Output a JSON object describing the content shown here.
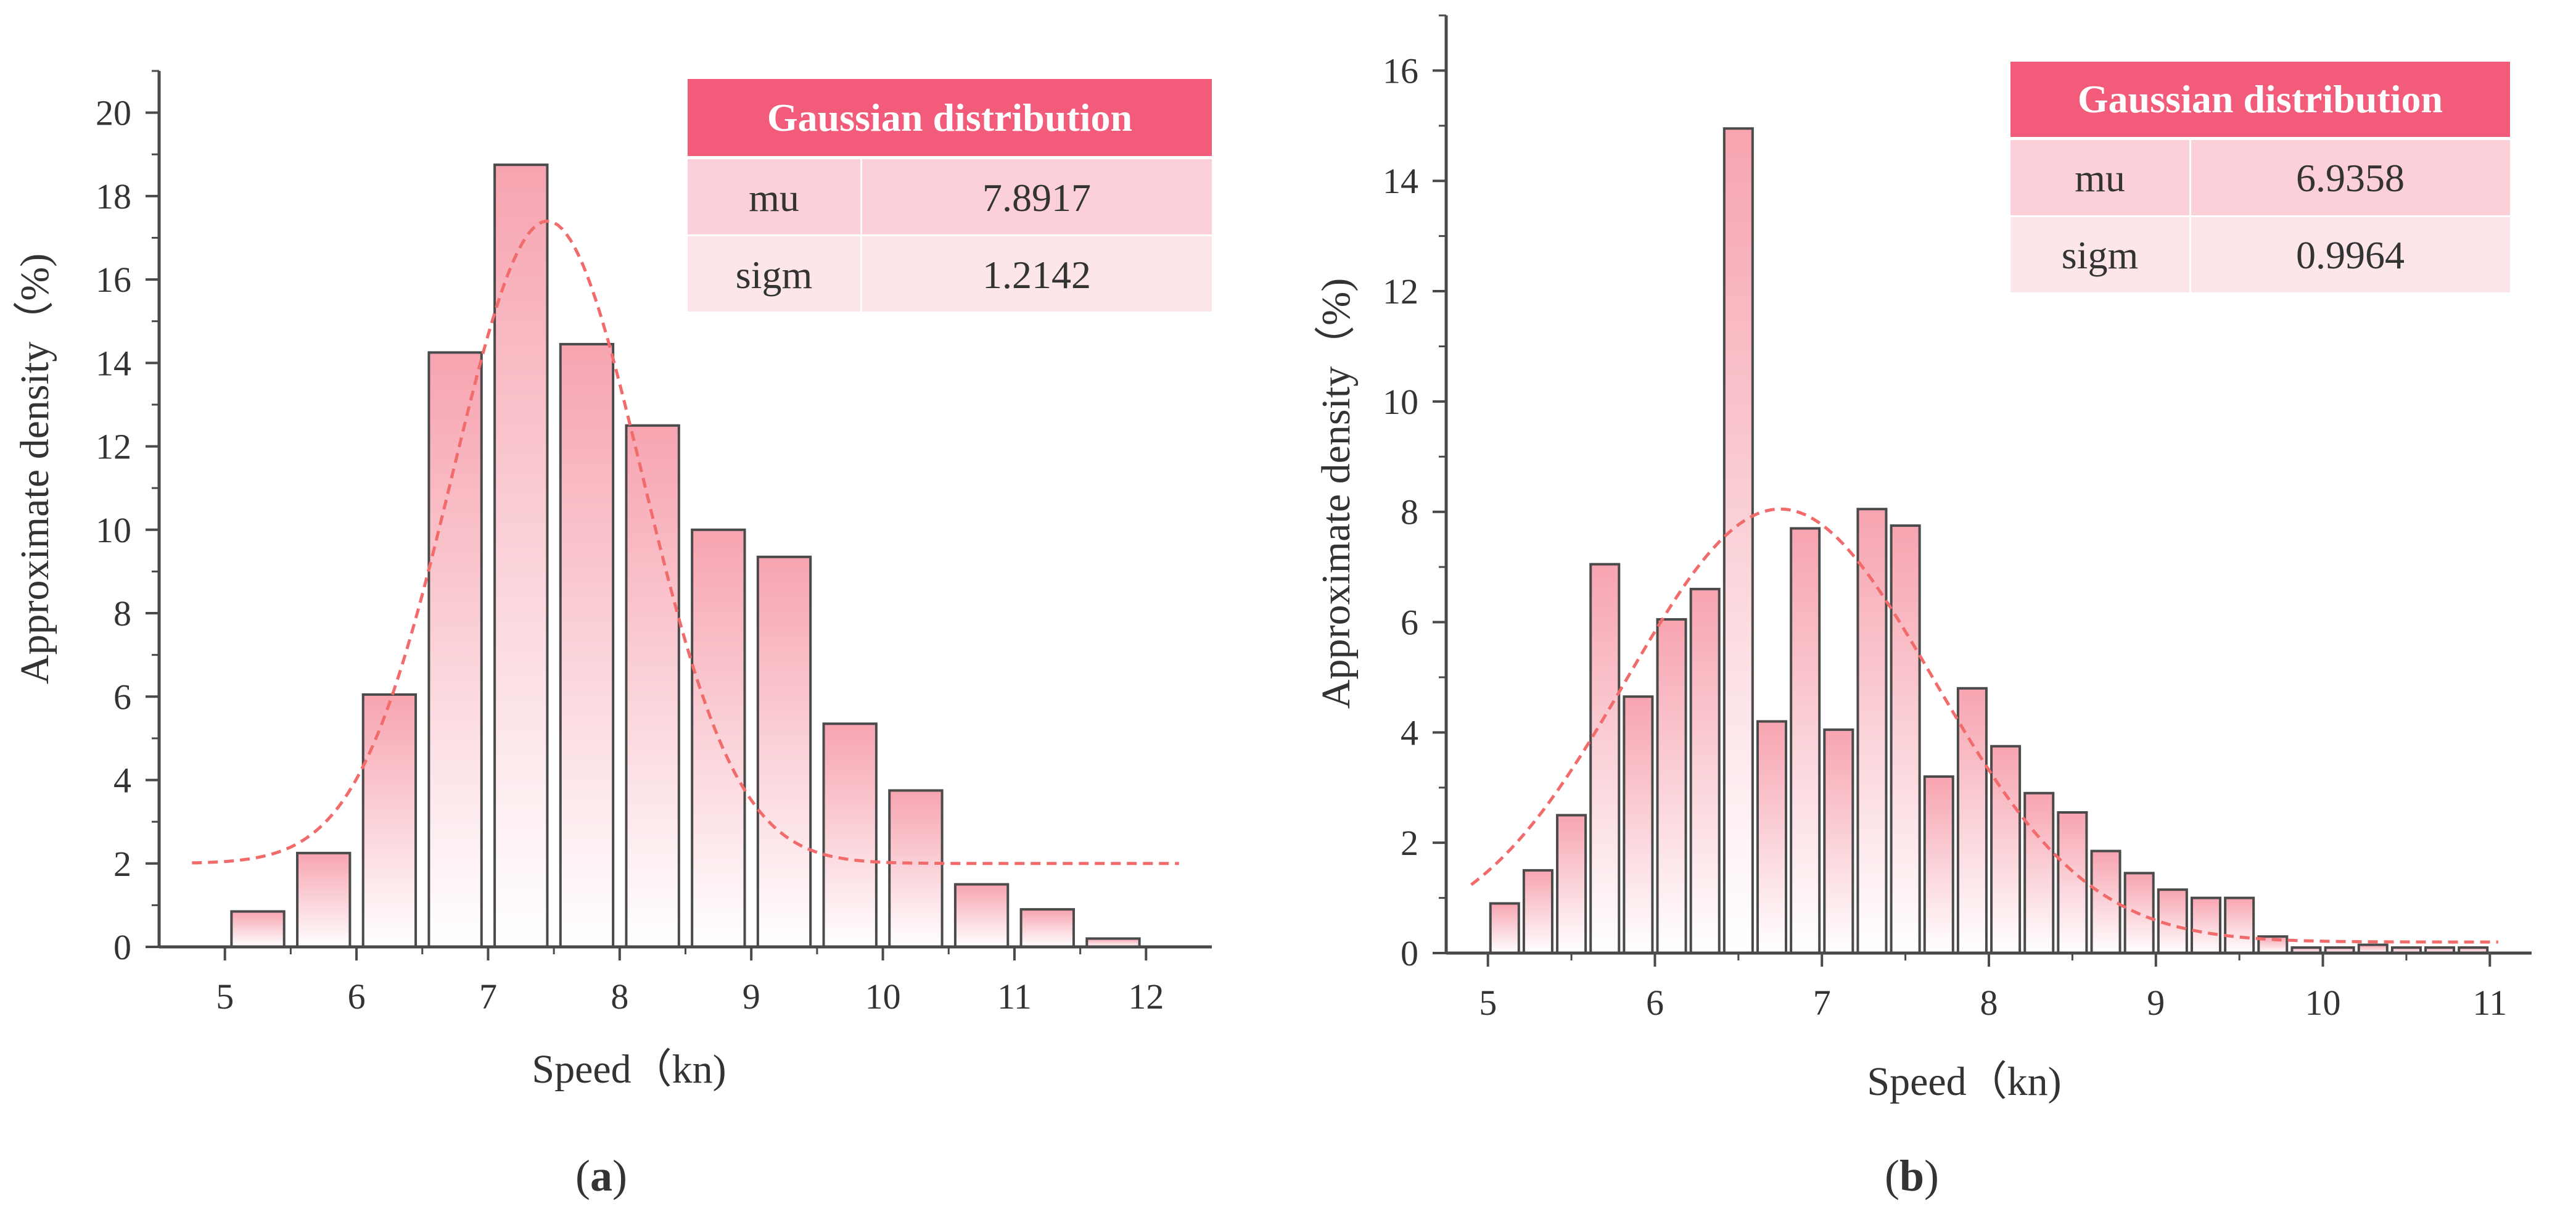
{
  "chart_data": [
    {
      "id": "a",
      "type": "bar",
      "panel_label": "a",
      "xlabel": "Speed（kn)",
      "ylabel": "Approximate density（%)",
      "xlim": [
        4.5,
        12.5
      ],
      "ylim": [
        0,
        21
      ],
      "x_ticks": [
        5,
        6,
        7,
        8,
        9,
        10,
        11,
        12
      ],
      "y_ticks": [
        0,
        2,
        4,
        6,
        8,
        10,
        12,
        14,
        16,
        18,
        20
      ],
      "bar_width": 0.4,
      "bins": [
        {
          "x": 5.25,
          "value": 0.85
        },
        {
          "x": 5.75,
          "value": 2.25
        },
        {
          "x": 6.25,
          "value": 6.05
        },
        {
          "x": 6.75,
          "value": 14.25
        },
        {
          "x": 7.25,
          "value": 18.75
        },
        {
          "x": 7.75,
          "value": 14.45
        },
        {
          "x": 8.25,
          "value": 12.5
        },
        {
          "x": 8.75,
          "value": 10.0
        },
        {
          "x": 9.25,
          "value": 9.35
        },
        {
          "x": 9.75,
          "value": 5.35
        },
        {
          "x": 10.25,
          "value": 3.75
        },
        {
          "x": 10.75,
          "value": 1.5
        },
        {
          "x": 11.25,
          "value": 0.9
        },
        {
          "x": 11.75,
          "value": 0.2
        }
      ],
      "fit": {
        "type": "gaussian",
        "mu": 7.45,
        "sigma": 0.72,
        "peak": 15.4,
        "baseline": 2.0,
        "x_range": [
          4.75,
          12.25
        ],
        "color": "#f26b6b"
      },
      "table": {
        "header": "Gaussian distribution",
        "rows": [
          [
            "mu",
            "7.8917"
          ],
          [
            "sigm",
            "1.2142"
          ]
        ]
      }
    },
    {
      "id": "b",
      "type": "bar",
      "panel_label": "b",
      "xlabel": "Speed（kn)",
      "ylabel": "Approximate density（%)",
      "xlim": [
        4.75,
        11.25
      ],
      "ylim": [
        0,
        17
      ],
      "x_ticks": [
        5,
        6,
        7,
        8,
        9,
        10,
        11
      ],
      "y_ticks": [
        0,
        2,
        4,
        6,
        8,
        10,
        12,
        14,
        16
      ],
      "bar_width": 0.17,
      "bins": [
        {
          "x": 5.1,
          "value": 0.9
        },
        {
          "x": 5.3,
          "value": 1.5
        },
        {
          "x": 5.5,
          "value": 2.5
        },
        {
          "x": 5.7,
          "value": 7.05
        },
        {
          "x": 5.9,
          "value": 4.65
        },
        {
          "x": 6.1,
          "value": 6.05
        },
        {
          "x": 6.3,
          "value": 6.6
        },
        {
          "x": 6.5,
          "value": 14.95
        },
        {
          "x": 6.7,
          "value": 4.2
        },
        {
          "x": 6.9,
          "value": 7.7
        },
        {
          "x": 7.1,
          "value": 4.05
        },
        {
          "x": 7.3,
          "value": 8.05
        },
        {
          "x": 7.5,
          "value": 7.75
        },
        {
          "x": 7.7,
          "value": 3.2
        },
        {
          "x": 7.9,
          "value": 4.8
        },
        {
          "x": 8.1,
          "value": 3.75
        },
        {
          "x": 8.3,
          "value": 2.9
        },
        {
          "x": 8.5,
          "value": 2.55
        },
        {
          "x": 8.7,
          "value": 1.85
        },
        {
          "x": 8.9,
          "value": 1.45
        },
        {
          "x": 9.1,
          "value": 1.15
        },
        {
          "x": 9.3,
          "value": 1.0
        },
        {
          "x": 9.5,
          "value": 1.0
        },
        {
          "x": 9.7,
          "value": 0.3
        },
        {
          "x": 9.9,
          "value": 0.1
        },
        {
          "x": 10.1,
          "value": 0.1
        },
        {
          "x": 10.3,
          "value": 0.15
        },
        {
          "x": 10.5,
          "value": 0.1
        },
        {
          "x": 10.7,
          "value": 0.1
        },
        {
          "x": 10.9,
          "value": 0.1
        }
      ],
      "fit": {
        "type": "gaussian",
        "mu": 6.75,
        "sigma": 0.92,
        "peak": 7.85,
        "baseline": 0.2,
        "x_range": [
          4.9,
          11.05
        ],
        "color": "#f26b6b"
      },
      "table": {
        "header": "Gaussian distribution",
        "rows": [
          [
            "mu",
            "6.9358"
          ],
          [
            "sigm",
            "0.9964"
          ]
        ]
      }
    }
  ]
}
